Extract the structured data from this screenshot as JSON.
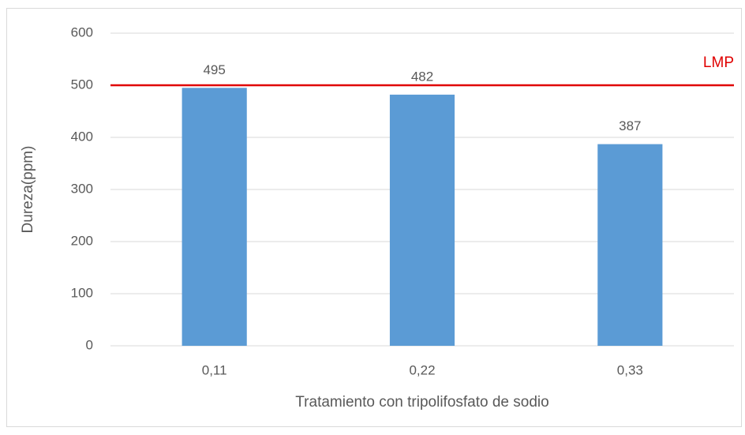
{
  "chart_data": {
    "type": "bar",
    "x_label": "Tratamiento con tripolifosfato de sodio",
    "y_label": "Dureza(ppm)",
    "categories": [
      "0,11",
      "0,22",
      "0,33"
    ],
    "values": [
      495,
      482,
      387
    ],
    "color": "#5b9bd5",
    "ylim": [
      0,
      600
    ],
    "yticks": [
      0,
      100,
      200,
      300,
      400,
      500,
      600
    ],
    "grid": true,
    "reference_line": {
      "value": 500,
      "label": "LMP",
      "color": "#e00000"
    }
  }
}
